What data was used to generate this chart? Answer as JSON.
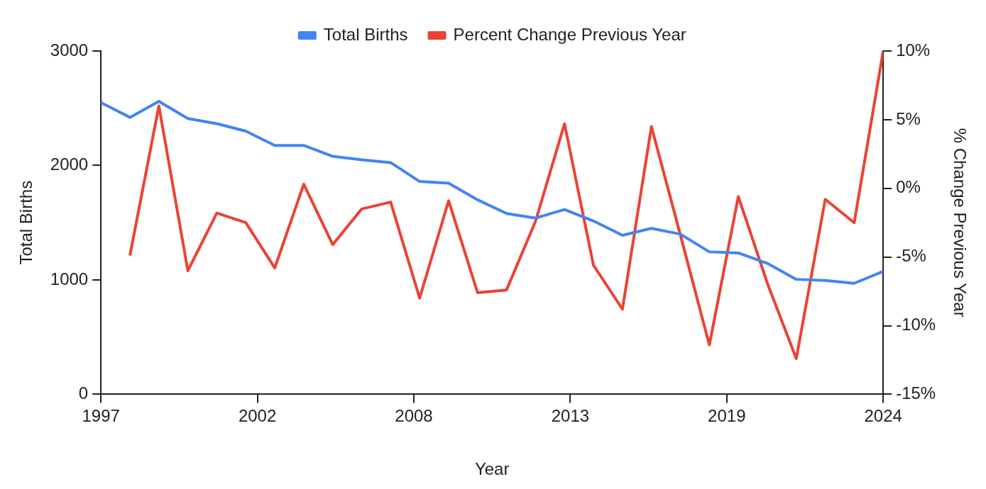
{
  "chart_data": {
    "type": "line",
    "xlabel": "Year",
    "ylabel": "Total Births",
    "y2label": "% Change Previous Year",
    "x": [
      1997,
      1998,
      1999,
      2000,
      2001,
      2002,
      2003,
      2004,
      2005,
      2006,
      2007,
      2008,
      2009,
      2010,
      2011,
      2012,
      2013,
      2014,
      2015,
      2016,
      2017,
      2018,
      2019,
      2020,
      2021,
      2022,
      2023,
      2024
    ],
    "series": [
      {
        "name": "Total Births",
        "color": "#4285f4",
        "values": [
          2550,
          2420,
          2560,
          2410,
          2365,
          2300,
          2175,
          2175,
          2080,
          2050,
          2025,
          1860,
          1845,
          1700,
          1580,
          1540,
          1615,
          1515,
          1390,
          1450,
          1400,
          1245,
          1235,
          1145,
          1005,
          995,
          970,
          1075
        ]
      },
      {
        "name": "Percent Change Previous Year",
        "color": "#ea4335",
        "axis": "y2",
        "values": [
          null,
          -4.9,
          6.0,
          -6.0,
          -1.8,
          -2.5,
          -5.8,
          0.3,
          -4.1,
          -1.5,
          -1.0,
          -8.0,
          -0.9,
          -7.6,
          -7.4,
          -2.4,
          4.7,
          -5.6,
          -8.8,
          4.5,
          -3.4,
          -11.4,
          -0.6,
          -6.9,
          -12.4,
          -0.8,
          -2.5,
          10.0
        ]
      }
    ],
    "xlim": [
      1997,
      2024
    ],
    "xticks": [
      1997,
      {
        "value": 2002.4,
        "label": "2002"
      },
      {
        "value": 2007.8,
        "label": "2008"
      },
      {
        "value": 2013.2,
        "label": "2013"
      },
      {
        "value": 2018.6,
        "label": "2019"
      },
      2024
    ],
    "ylim": [
      0,
      3000
    ],
    "yticks": [
      0,
      1000,
      2000,
      3000
    ],
    "y2lim": [
      -15,
      10
    ],
    "y2ticks": [
      {
        "value": -15,
        "label": "-15%"
      },
      {
        "value": -10,
        "label": "-10%"
      },
      {
        "value": -5,
        "label": "-5%"
      },
      {
        "value": 0,
        "label": "0%"
      },
      {
        "value": 5,
        "label": "5%"
      },
      {
        "value": 10,
        "label": "10%"
      }
    ],
    "legend": "top",
    "grid": false,
    "marker": "none",
    "line_style": "solid"
  }
}
